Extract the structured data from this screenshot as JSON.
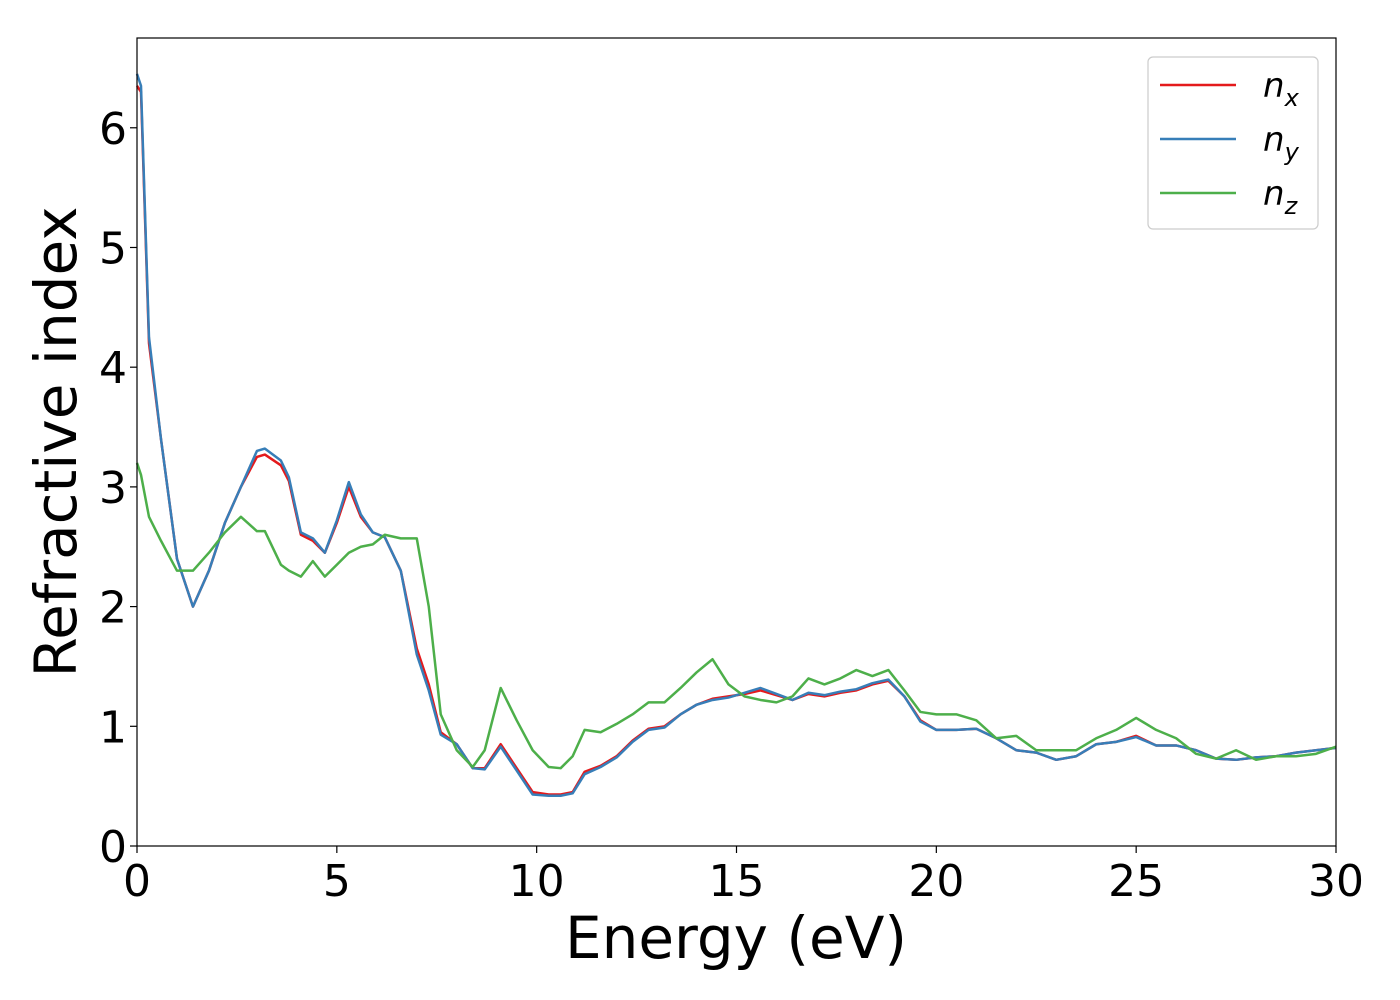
{
  "chart_data": {
    "type": "line",
    "xlabel": "Energy (eV)",
    "ylabel": "Refractive index",
    "xlim": [
      0,
      30
    ],
    "ylim": [
      0,
      6.75
    ],
    "xticks": [
      0,
      5,
      10,
      15,
      20,
      25,
      30
    ],
    "yticks": [
      0,
      1,
      2,
      3,
      4,
      5,
      6
    ],
    "legend": "upper right",
    "x": [
      0,
      0.1,
      0.3,
      0.6,
      1.0,
      1.4,
      1.8,
      2.2,
      2.6,
      3.0,
      3.2,
      3.6,
      3.8,
      4.1,
      4.4,
      4.7,
      5.0,
      5.3,
      5.6,
      5.9,
      6.2,
      6.6,
      7.0,
      7.3,
      7.6,
      8.0,
      8.4,
      8.7,
      9.1,
      9.5,
      9.9,
      10.3,
      10.6,
      10.9,
      11.2,
      11.6,
      12.0,
      12.4,
      12.8,
      13.2,
      13.6,
      14.0,
      14.4,
      14.8,
      15.2,
      15.6,
      16.0,
      16.4,
      16.8,
      17.2,
      17.6,
      18.0,
      18.4,
      18.8,
      19.2,
      19.6,
      20.0,
      20.5,
      21.0,
      21.5,
      22.0,
      22.5,
      23.0,
      23.5,
      24.0,
      24.5,
      25.0,
      25.5,
      26.0,
      26.5,
      27.0,
      27.5,
      28.0,
      28.5,
      29.0,
      29.5,
      30.0
    ],
    "series": [
      {
        "name": "nx",
        "color": "#e41a1c",
        "values": [
          6.35,
          6.3,
          4.2,
          3.4,
          2.4,
          2.0,
          2.3,
          2.7,
          3.0,
          3.25,
          3.27,
          3.18,
          3.05,
          2.6,
          2.55,
          2.45,
          2.7,
          3.0,
          2.75,
          2.62,
          2.58,
          2.3,
          1.65,
          1.35,
          0.95,
          0.85,
          0.65,
          0.65,
          0.85,
          0.65,
          0.45,
          0.43,
          0.43,
          0.45,
          0.62,
          0.67,
          0.75,
          0.88,
          0.98,
          1.0,
          1.1,
          1.18,
          1.23,
          1.25,
          1.27,
          1.3,
          1.26,
          1.22,
          1.27,
          1.25,
          1.28,
          1.3,
          1.35,
          1.38,
          1.25,
          1.05,
          0.97,
          0.97,
          0.98,
          0.9,
          0.8,
          0.78,
          0.72,
          0.75,
          0.85,
          0.87,
          0.92,
          0.84,
          0.84,
          0.8,
          0.73,
          0.72,
          0.74,
          0.75,
          0.78,
          0.8,
          0.82
        ]
      },
      {
        "name": "ny",
        "color": "#377eb8",
        "values": [
          6.45,
          6.35,
          4.25,
          3.4,
          2.4,
          2.0,
          2.3,
          2.7,
          3.0,
          3.3,
          3.32,
          3.22,
          3.08,
          2.62,
          2.57,
          2.45,
          2.72,
          3.04,
          2.77,
          2.62,
          2.58,
          2.3,
          1.6,
          1.3,
          0.93,
          0.85,
          0.65,
          0.64,
          0.83,
          0.63,
          0.43,
          0.42,
          0.42,
          0.44,
          0.6,
          0.66,
          0.74,
          0.87,
          0.97,
          0.99,
          1.1,
          1.18,
          1.22,
          1.24,
          1.28,
          1.32,
          1.27,
          1.22,
          1.28,
          1.26,
          1.29,
          1.31,
          1.36,
          1.39,
          1.25,
          1.04,
          0.97,
          0.97,
          0.98,
          0.9,
          0.8,
          0.78,
          0.72,
          0.75,
          0.85,
          0.87,
          0.91,
          0.84,
          0.84,
          0.8,
          0.73,
          0.72,
          0.74,
          0.75,
          0.78,
          0.8,
          0.82
        ]
      },
      {
        "name": "nz",
        "color": "#4daf4a",
        "values": [
          3.2,
          3.1,
          2.75,
          2.55,
          2.3,
          2.3,
          2.45,
          2.62,
          2.75,
          2.63,
          2.63,
          2.35,
          2.3,
          2.25,
          2.38,
          2.25,
          2.35,
          2.45,
          2.5,
          2.52,
          2.6,
          2.57,
          2.57,
          2.0,
          1.1,
          0.8,
          0.66,
          0.8,
          1.32,
          1.05,
          0.8,
          0.66,
          0.65,
          0.75,
          0.97,
          0.95,
          1.02,
          1.1,
          1.2,
          1.2,
          1.32,
          1.45,
          1.56,
          1.35,
          1.25,
          1.22,
          1.2,
          1.25,
          1.4,
          1.35,
          1.4,
          1.47,
          1.42,
          1.47,
          1.3,
          1.12,
          1.1,
          1.1,
          1.05,
          0.9,
          0.92,
          0.8,
          0.8,
          0.8,
          0.9,
          0.97,
          1.07,
          0.97,
          0.9,
          0.77,
          0.73,
          0.8,
          0.72,
          0.75,
          0.75,
          0.77,
          0.83
        ]
      }
    ]
  }
}
